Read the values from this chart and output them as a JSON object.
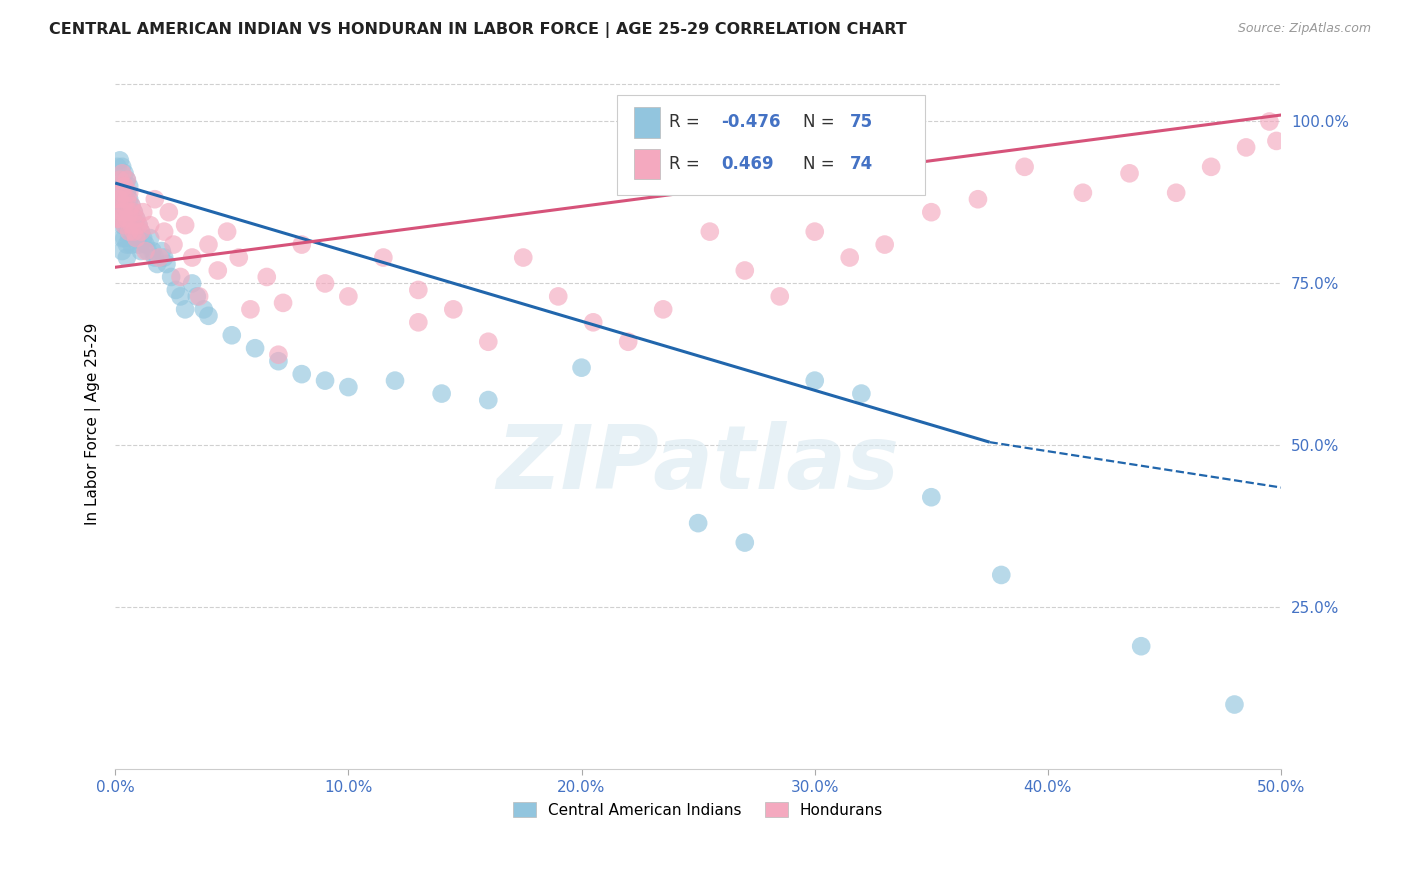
{
  "title": "CENTRAL AMERICAN INDIAN VS HONDURAN IN LABOR FORCE | AGE 25-29 CORRELATION CHART",
  "source": "Source: ZipAtlas.com",
  "ylabel": "In Labor Force | Age 25-29",
  "xlim": [
    0.0,
    0.5
  ],
  "ylim": [
    0.0,
    1.068
  ],
  "xtick_labels": [
    "0.0%",
    "10.0%",
    "20.0%",
    "30.0%",
    "40.0%",
    "50.0%"
  ],
  "xtick_vals": [
    0.0,
    0.1,
    0.2,
    0.3,
    0.4,
    0.5
  ],
  "ytick_labels": [
    "25.0%",
    "50.0%",
    "75.0%",
    "100.0%"
  ],
  "ytick_vals": [
    0.25,
    0.5,
    0.75,
    1.0
  ],
  "legend1_label": "Central American Indians",
  "legend2_label": "Hondurans",
  "R_blue": -0.476,
  "N_blue": 75,
  "R_pink": 0.469,
  "N_pink": 74,
  "blue_color": "#92c5de",
  "pink_color": "#f4a9bf",
  "blue_line_color": "#2166ac",
  "pink_line_color": "#d6537a",
  "watermark": "ZIPatlas",
  "blue_line": {
    "x0": 0.0,
    "y0": 0.905,
    "x1": 0.375,
    "y1": 0.505,
    "xdash_end": 0.5,
    "ydash_end": 0.435
  },
  "pink_line": {
    "x0": 0.0,
    "y0": 0.775,
    "x1": 0.5,
    "y1": 1.01
  },
  "blue_scatter_x": [
    0.001,
    0.001,
    0.001,
    0.002,
    0.002,
    0.002,
    0.002,
    0.003,
    0.003,
    0.003,
    0.003,
    0.003,
    0.003,
    0.004,
    0.004,
    0.004,
    0.004,
    0.004,
    0.005,
    0.005,
    0.005,
    0.005,
    0.005,
    0.005,
    0.006,
    0.006,
    0.006,
    0.006,
    0.007,
    0.007,
    0.007,
    0.008,
    0.008,
    0.009,
    0.009,
    0.01,
    0.01,
    0.011,
    0.011,
    0.012,
    0.013,
    0.014,
    0.015,
    0.016,
    0.017,
    0.018,
    0.02,
    0.021,
    0.022,
    0.024,
    0.026,
    0.028,
    0.03,
    0.033,
    0.035,
    0.038,
    0.04,
    0.05,
    0.06,
    0.07,
    0.08,
    0.09,
    0.1,
    0.12,
    0.14,
    0.16,
    0.2,
    0.25,
    0.27,
    0.3,
    0.32,
    0.35,
    0.38,
    0.44,
    0.48
  ],
  "blue_scatter_y": [
    0.93,
    0.9,
    0.87,
    0.94,
    0.91,
    0.88,
    0.85,
    0.93,
    0.9,
    0.87,
    0.84,
    0.82,
    0.8,
    0.92,
    0.89,
    0.87,
    0.84,
    0.82,
    0.91,
    0.89,
    0.86,
    0.84,
    0.81,
    0.79,
    0.9,
    0.88,
    0.85,
    0.82,
    0.87,
    0.84,
    0.81,
    0.86,
    0.83,
    0.85,
    0.82,
    0.84,
    0.81,
    0.83,
    0.8,
    0.82,
    0.81,
    0.8,
    0.82,
    0.8,
    0.79,
    0.78,
    0.8,
    0.79,
    0.78,
    0.76,
    0.74,
    0.73,
    0.71,
    0.75,
    0.73,
    0.71,
    0.7,
    0.67,
    0.65,
    0.63,
    0.61,
    0.6,
    0.59,
    0.6,
    0.58,
    0.57,
    0.62,
    0.38,
    0.35,
    0.6,
    0.58,
    0.42,
    0.3,
    0.19,
    0.1
  ],
  "pink_scatter_x": [
    0.001,
    0.001,
    0.002,
    0.002,
    0.002,
    0.003,
    0.003,
    0.003,
    0.004,
    0.004,
    0.004,
    0.005,
    0.005,
    0.005,
    0.006,
    0.006,
    0.006,
    0.007,
    0.007,
    0.008,
    0.008,
    0.009,
    0.009,
    0.01,
    0.011,
    0.012,
    0.013,
    0.015,
    0.017,
    0.019,
    0.021,
    0.023,
    0.025,
    0.028,
    0.03,
    0.033,
    0.036,
    0.04,
    0.044,
    0.048,
    0.053,
    0.058,
    0.065,
    0.072,
    0.08,
    0.09,
    0.1,
    0.115,
    0.13,
    0.145,
    0.16,
    0.175,
    0.19,
    0.205,
    0.22,
    0.235,
    0.255,
    0.27,
    0.285,
    0.3,
    0.315,
    0.33,
    0.35,
    0.37,
    0.39,
    0.415,
    0.435,
    0.455,
    0.47,
    0.485,
    0.495,
    0.498,
    0.07,
    0.13
  ],
  "pink_scatter_y": [
    0.88,
    0.85,
    0.91,
    0.88,
    0.85,
    0.92,
    0.89,
    0.86,
    0.9,
    0.87,
    0.84,
    0.91,
    0.88,
    0.85,
    0.89,
    0.86,
    0.83,
    0.87,
    0.84,
    0.86,
    0.83,
    0.85,
    0.82,
    0.84,
    0.83,
    0.86,
    0.8,
    0.84,
    0.88,
    0.79,
    0.83,
    0.86,
    0.81,
    0.76,
    0.84,
    0.79,
    0.73,
    0.81,
    0.77,
    0.83,
    0.79,
    0.71,
    0.76,
    0.72,
    0.81,
    0.75,
    0.73,
    0.79,
    0.74,
    0.71,
    0.66,
    0.79,
    0.73,
    0.69,
    0.66,
    0.71,
    0.83,
    0.77,
    0.73,
    0.83,
    0.79,
    0.81,
    0.86,
    0.88,
    0.93,
    0.89,
    0.92,
    0.89,
    0.93,
    0.96,
    1.0,
    0.97,
    0.64,
    0.69
  ]
}
